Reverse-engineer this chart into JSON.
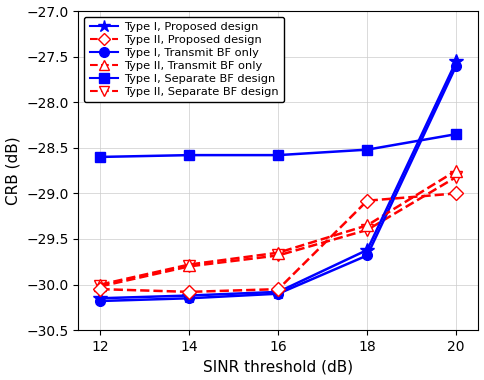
{
  "x": [
    12,
    14,
    16,
    18,
    20
  ],
  "series": {
    "type1_proposed": [
      -30.15,
      -30.12,
      -30.08,
      -29.62,
      -27.55
    ],
    "type2_proposed": [
      -30.05,
      -30.08,
      -30.05,
      -29.08,
      -29.0
    ],
    "type1_transmit": [
      -30.18,
      -30.15,
      -30.1,
      -29.68,
      -27.6
    ],
    "type2_transmit": [
      -30.0,
      -29.78,
      -29.65,
      -29.35,
      -28.75
    ],
    "type1_separate": [
      -28.6,
      -28.58,
      -28.58,
      -28.52,
      -28.35
    ],
    "type2_separate": [
      -30.02,
      -29.8,
      -29.68,
      -29.4,
      -28.82
    ]
  },
  "colors": {
    "blue": "#0000FF",
    "red": "#FF0000"
  },
  "xlabel": "SINR threshold (dB)",
  "ylabel": "CRB (dB)",
  "xlim": [
    11.5,
    20.5
  ],
  "ylim": [
    -30.5,
    -27.0
  ],
  "xticks": [
    12,
    14,
    16,
    18,
    20
  ],
  "yticks": [
    -30.5,
    -30.0,
    -29.5,
    -29.0,
    -28.5,
    -28.0,
    -27.5,
    -27.0
  ]
}
